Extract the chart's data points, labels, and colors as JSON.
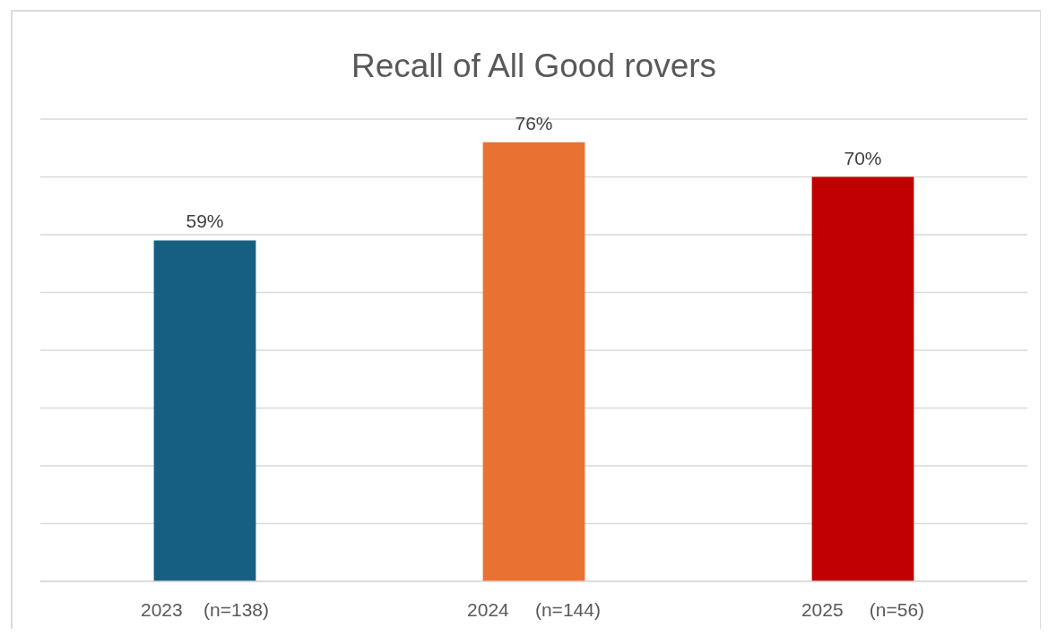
{
  "chart_data": {
    "type": "bar",
    "title": "Recall of All Good rovers",
    "categories": [
      "2023    (n=138)",
      "2024     (n=144)",
      "2025     (n=56)"
    ],
    "values": [
      59,
      76,
      70
    ],
    "colors": [
      "#175f82",
      "#e97132",
      "#c00000"
    ],
    "data_labels": true,
    "value_labels": [
      "59%",
      "76%",
      "70%"
    ],
    "ylim": [
      0,
      80
    ],
    "yticks": [
      {
        "value": 0,
        "label": null
      },
      {
        "value": 10,
        "label": null
      },
      {
        "value": 20,
        "label": null
      },
      {
        "value": 30,
        "label": null
      },
      {
        "value": 40,
        "label": null
      },
      {
        "value": 50,
        "label": null
      },
      {
        "value": 60,
        "label": null
      },
      {
        "value": 70,
        "label": null
      },
      {
        "value": 80,
        "label": null
      }
    ],
    "grid": "y",
    "tick_labels": "x"
  }
}
